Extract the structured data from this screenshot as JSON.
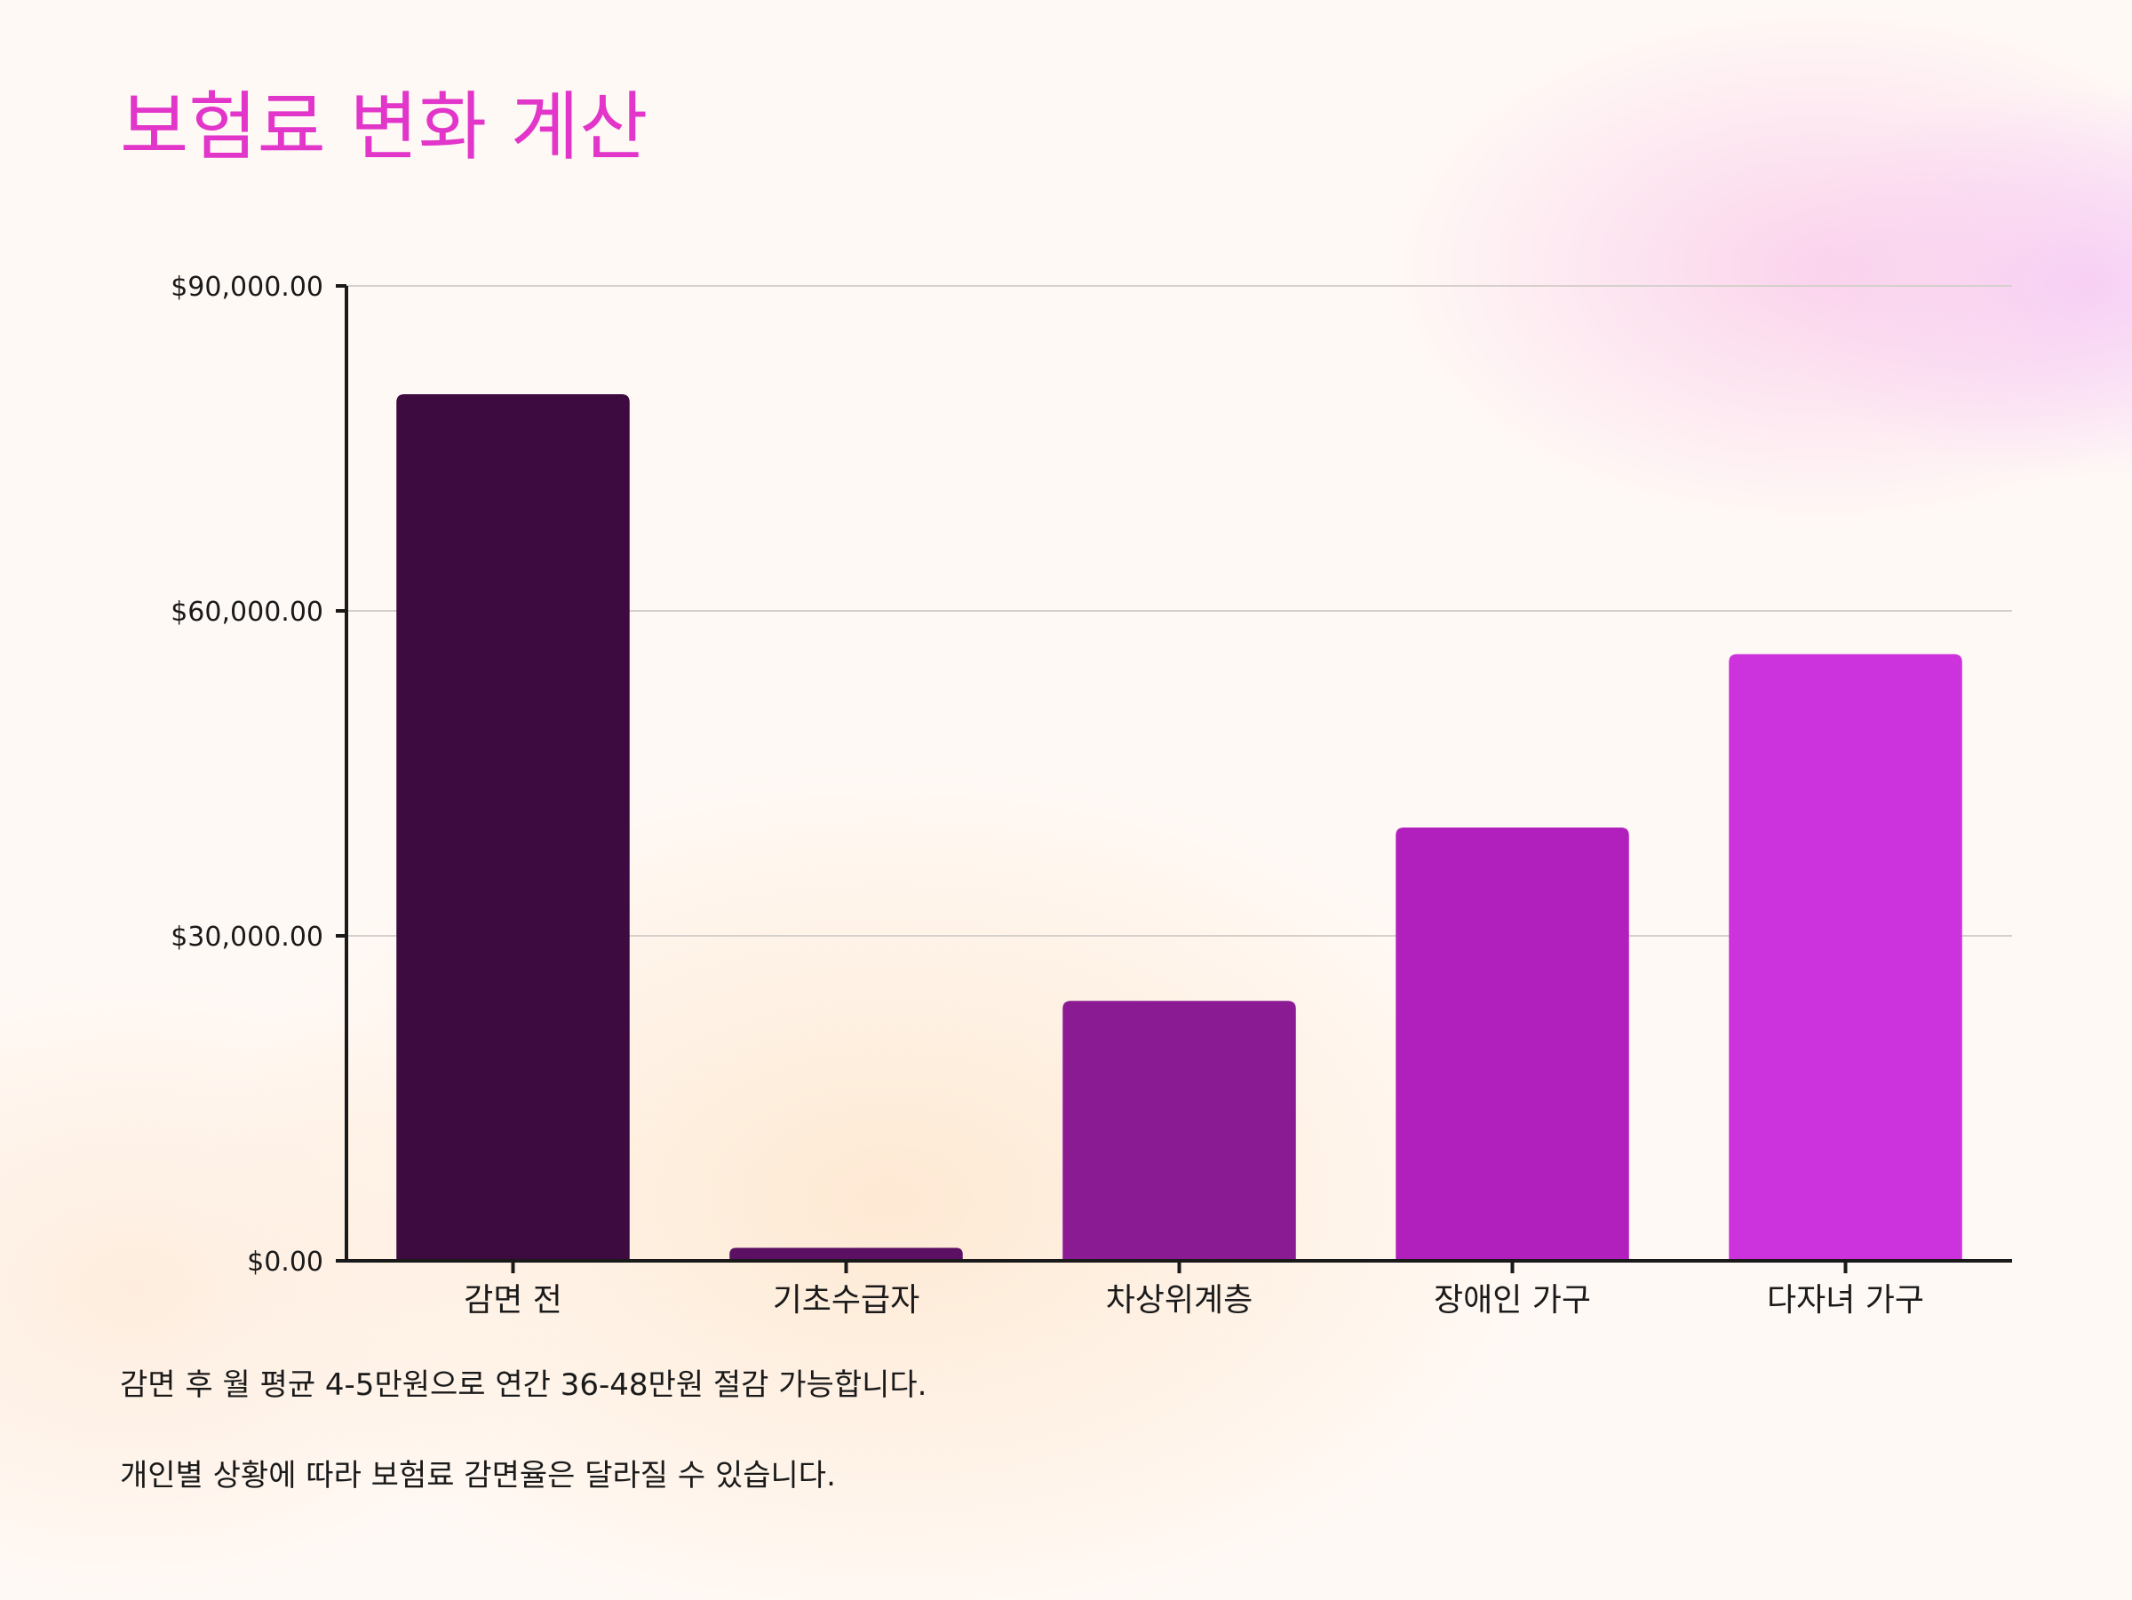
{
  "title": "보험료 변화 계산",
  "chart_data": {
    "type": "bar",
    "categories": [
      "감면 전",
      "기초수급자",
      "차상위계층",
      "장애인 가구",
      "다자녀 가구"
    ],
    "values": [
      80000,
      1200,
      24000,
      40000,
      56000
    ],
    "ylim": [
      0,
      90000
    ],
    "yticks": [
      0,
      30000,
      60000,
      90000
    ],
    "ytick_labels": [
      "$0.00",
      "$30,000.00",
      "$60,000.00",
      "$90,000.00"
    ],
    "title": "",
    "xlabel": "",
    "ylabel": "",
    "grid": true,
    "colors": [
      "#3d0b3f",
      "#5b1064",
      "#8b1b93",
      "#b120bc",
      "#cc33dd"
    ],
    "grid_color": "#d6d0cc",
    "axis_color": "#1a1a1a"
  },
  "notes": [
    "감면 후 월 평균 4-5만원으로 연간 36-48만원 절감 가능합니다.",
    "개인별 상황에 따라 보험료 감면율은 달라질 수 있습니다."
  ]
}
